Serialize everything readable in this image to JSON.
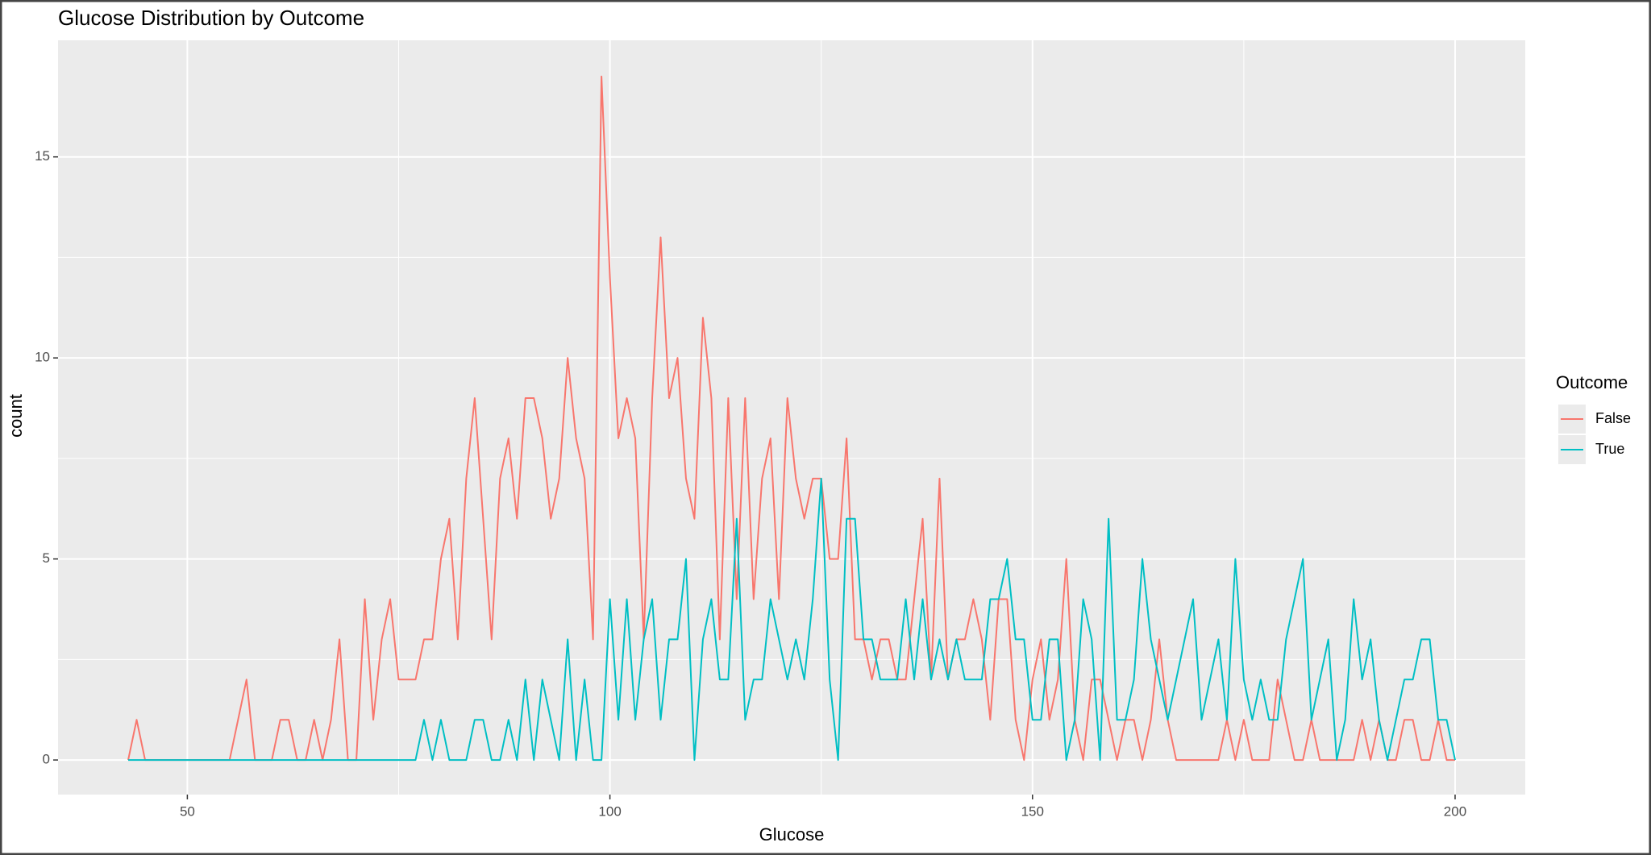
{
  "chart_data": {
    "type": "line",
    "title": "Glucose Distribution by Outcome",
    "x_label": "Glucose",
    "y_label": "count",
    "legend_title": "Outcome",
    "legend_position": "right",
    "grid": true,
    "x": [
      43,
      44,
      45,
      46,
      47,
      48,
      49,
      50,
      51,
      52,
      53,
      54,
      55,
      56,
      57,
      58,
      59,
      60,
      61,
      62,
      63,
      64,
      65,
      66,
      67,
      68,
      69,
      70,
      71,
      72,
      73,
      74,
      75,
      76,
      77,
      78,
      79,
      80,
      81,
      82,
      83,
      84,
      85,
      86,
      87,
      88,
      89,
      90,
      91,
      92,
      93,
      94,
      95,
      96,
      97,
      98,
      99,
      100,
      101,
      102,
      103,
      104,
      105,
      106,
      107,
      108,
      109,
      110,
      111,
      112,
      113,
      114,
      115,
      116,
      117,
      118,
      119,
      120,
      121,
      122,
      123,
      124,
      125,
      126,
      127,
      128,
      129,
      130,
      131,
      132,
      133,
      134,
      135,
      136,
      137,
      138,
      139,
      140,
      141,
      142,
      143,
      144,
      145,
      146,
      147,
      148,
      149,
      150,
      151,
      152,
      153,
      154,
      155,
      156,
      157,
      158,
      159,
      160,
      161,
      162,
      163,
      164,
      165,
      166,
      167,
      168,
      169,
      170,
      171,
      172,
      173,
      174,
      175,
      176,
      177,
      178,
      179,
      180,
      181,
      182,
      183,
      184,
      185,
      186,
      187,
      188,
      189,
      190,
      191,
      192,
      193,
      194,
      195,
      196,
      197,
      198,
      199,
      200
    ],
    "series": [
      {
        "name": "False",
        "color": "#F8766D",
        "values": [
          0,
          1,
          0,
          0,
          0,
          0,
          0,
          0,
          0,
          0,
          0,
          0,
          0,
          1,
          2,
          0,
          0,
          0,
          1,
          1,
          0,
          0,
          1,
          0,
          1,
          3,
          0,
          0,
          4,
          1,
          3,
          4,
          2,
          2,
          2,
          3,
          3,
          5,
          6,
          3,
          7,
          9,
          6,
          3,
          7,
          8,
          6,
          9,
          9,
          8,
          6,
          7,
          10,
          8,
          7,
          3,
          17,
          12,
          8,
          9,
          8,
          3,
          9,
          13,
          9,
          10,
          7,
          6,
          11,
          9,
          3,
          9,
          4,
          9,
          4,
          7,
          8,
          4,
          9,
          7,
          6,
          7,
          7,
          5,
          5,
          8,
          3,
          3,
          2,
          3,
          3,
          2,
          2,
          4,
          6,
          2,
          7,
          2,
          3,
          3,
          4,
          3,
          1,
          4,
          4,
          1,
          0,
          2,
          3,
          1,
          2,
          5,
          1,
          0,
          2,
          2,
          1,
          0,
          1,
          1,
          0,
          1,
          3,
          1,
          0,
          0,
          0,
          0,
          0,
          0,
          1,
          0,
          1,
          0,
          0,
          0,
          2,
          1,
          0,
          0,
          1,
          0,
          0,
          0,
          0,
          0,
          1,
          0,
          1,
          0,
          0,
          1,
          1,
          0,
          0,
          1,
          0,
          0
        ]
      },
      {
        "name": "True",
        "color": "#00BFC4",
        "values": [
          0,
          0,
          0,
          0,
          0,
          0,
          0,
          0,
          0,
          0,
          0,
          0,
          0,
          0,
          0,
          0,
          0,
          0,
          0,
          0,
          0,
          0,
          0,
          0,
          0,
          0,
          0,
          0,
          0,
          0,
          0,
          0,
          0,
          0,
          0,
          1,
          0,
          1,
          0,
          0,
          0,
          1,
          1,
          0,
          0,
          1,
          0,
          2,
          0,
          2,
          1,
          0,
          3,
          0,
          2,
          0,
          0,
          4,
          1,
          4,
          1,
          3,
          4,
          1,
          3,
          3,
          5,
          0,
          3,
          4,
          2,
          2,
          6,
          1,
          2,
          2,
          4,
          3,
          2,
          3,
          2,
          4,
          7,
          2,
          0,
          6,
          6,
          3,
          3,
          2,
          2,
          2,
          4,
          2,
          4,
          2,
          3,
          2,
          3,
          2,
          2,
          2,
          4,
          4,
          5,
          3,
          3,
          1,
          1,
          3,
          3,
          0,
          1,
          4,
          3,
          0,
          6,
          1,
          1,
          2,
          5,
          3,
          2,
          1,
          2,
          3,
          4,
          1,
          2,
          3,
          1,
          5,
          2,
          1,
          2,
          1,
          1,
          3,
          4,
          5,
          1,
          2,
          3,
          0,
          1,
          4,
          2,
          3,
          1,
          0,
          1,
          2,
          2,
          3,
          3,
          1,
          1,
          0
        ]
      }
    ],
    "xlim": [
      34.7,
      208.3
    ],
    "xticks": [
      50,
      100,
      150,
      200
    ],
    "ylim": [
      -0.86,
      17.9
    ],
    "yticks": [
      0,
      5,
      10,
      15
    ]
  }
}
